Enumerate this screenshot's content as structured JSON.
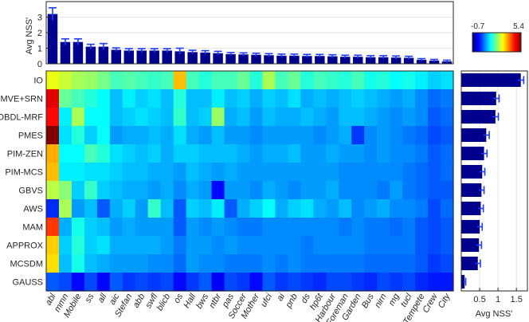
{
  "chart_data": [
    {
      "type": "bar",
      "name": "top-bar-chart",
      "ylabel": "Avg NSS'",
      "ylim": [
        0,
        4
      ],
      "yticks": [
        0,
        1,
        2,
        3
      ],
      "categories": [
        "abl",
        "mmn",
        "Mobile",
        "ss",
        "all",
        "aic",
        "Stefan",
        "abb",
        "swfl",
        "blicb",
        "os",
        "Hall",
        "bws",
        "ntbr",
        "pas",
        "Soccer",
        "Mother",
        "ufci",
        "ai",
        "pnb",
        "ds",
        "hp6t",
        "Harbour",
        "Foreman",
        "Garden",
        "Bus",
        "nirn",
        "mg",
        "tucl",
        "Tempete",
        "Crew",
        "City"
      ],
      "values": [
        3.2,
        1.4,
        1.4,
        1.1,
        1.1,
        0.9,
        0.85,
        0.85,
        0.85,
        0.85,
        0.8,
        0.75,
        0.72,
        0.68,
        0.62,
        0.6,
        0.58,
        0.55,
        0.52,
        0.52,
        0.5,
        0.5,
        0.48,
        0.45,
        0.45,
        0.42,
        0.42,
        0.4,
        0.38,
        0.25,
        0.2,
        0.15
      ],
      "errors": [
        0.4,
        0.2,
        0.2,
        0.15,
        0.2,
        0.12,
        0.12,
        0.12,
        0.12,
        0.12,
        0.2,
        0.12,
        0.12,
        0.12,
        0.1,
        0.1,
        0.1,
        0.1,
        0.1,
        0.1,
        0.1,
        0.1,
        0.1,
        0.1,
        0.1,
        0.1,
        0.1,
        0.1,
        0.1,
        0.08,
        0.08,
        0.08
      ]
    },
    {
      "type": "heatmap",
      "name": "nss-heatmap",
      "rows": [
        "IO",
        "MVE+SRN",
        "OBDL-MRF",
        "PMES",
        "PIM-ZEN",
        "PIM-MCS",
        "GBVS",
        "AWS",
        "MAM",
        "APPROX",
        "MCSDM",
        "GAUSS"
      ],
      "columns": [
        "abl",
        "mmn",
        "Mobile",
        "ss",
        "all",
        "aic",
        "Stefan",
        "abb",
        "swfl",
        "blicb",
        "os",
        "Hall",
        "bws",
        "ntbr",
        "pas",
        "Soccer",
        "Mother",
        "ufci",
        "ai",
        "pnb",
        "ds",
        "hp6t",
        "Harbour",
        "Foreman",
        "Garden",
        "Bus",
        "nirn",
        "mg",
        "tucl",
        "Tempete",
        "Crew",
        "City"
      ],
      "colorbar": {
        "min": -0.7,
        "max": 5.4,
        "min_label": "-0.7",
        "max_label": "5.4"
      },
      "values": [
        [
          3.0,
          2.8,
          2.6,
          2.5,
          2.3,
          2.0,
          2.1,
          2.0,
          1.9,
          2.0,
          3.5,
          2.0,
          1.8,
          2.0,
          2.0,
          2.2,
          1.8,
          2.6,
          2.0,
          2.2,
          1.8,
          2.0,
          1.9,
          1.8,
          2.0,
          1.7,
          1.8,
          1.6,
          1.7,
          1.5,
          1.3,
          1.4
        ],
        [
          4.8,
          2.2,
          2.0,
          1.8,
          1.6,
          1.2,
          1.5,
          1.3,
          1.4,
          1.2,
          1.8,
          1.2,
          1.2,
          1.5,
          1.2,
          1.3,
          1.1,
          1.3,
          1.2,
          1.4,
          1.1,
          1.2,
          1.1,
          1.2,
          1.3,
          1.2,
          1.1,
          1.0,
          1.1,
          0.9,
          0.7,
          0.8
        ],
        [
          4.6,
          1.5,
          2.6,
          1.6,
          1.6,
          1.2,
          1.3,
          1.4,
          1.3,
          1.2,
          1.9,
          1.2,
          1.3,
          2.5,
          1.1,
          1.2,
          1.0,
          1.2,
          1.1,
          1.1,
          1.2,
          1.1,
          1.0,
          1.2,
          1.2,
          1.1,
          1.0,
          0.9,
          1.0,
          0.9,
          0.6,
          0.7
        ],
        [
          5.4,
          1.4,
          1.8,
          1.3,
          1.6,
          1.0,
          1.1,
          1.1,
          1.2,
          1.1,
          1.4,
          1.1,
          1.0,
          1.2,
          1.0,
          1.0,
          0.9,
          1.0,
          1.0,
          1.0,
          1.0,
          0.9,
          1.0,
          1.1,
          0.4,
          0.9,
          1.0,
          0.9,
          0.8,
          0.7,
          0.5,
          0.6
        ],
        [
          3.6,
          1.6,
          1.6,
          2.0,
          1.8,
          1.4,
          1.3,
          1.2,
          1.3,
          1.1,
          1.3,
          1.3,
          1.2,
          1.2,
          1.2,
          1.1,
          1.0,
          1.1,
          1.1,
          1.2,
          1.0,
          1.0,
          1.1,
          1.0,
          1.0,
          0.9,
          1.0,
          0.9,
          0.9,
          0.8,
          0.6,
          0.7
        ],
        [
          3.5,
          1.5,
          1.5,
          1.4,
          1.4,
          1.3,
          1.2,
          1.2,
          1.1,
          1.1,
          1.0,
          1.2,
          1.1,
          1.0,
          1.1,
          1.0,
          1.0,
          1.0,
          1.0,
          1.0,
          1.0,
          1.0,
          1.0,
          0.9,
          0.9,
          0.9,
          0.9,
          0.9,
          0.8,
          0.7,
          0.6,
          0.7
        ],
        [
          2.7,
          2.4,
          1.3,
          1.9,
          1.3,
          1.2,
          1.1,
          1.1,
          1.0,
          1.1,
          0.9,
          1.1,
          1.0,
          0.1,
          1.0,
          1.0,
          0.9,
          1.1,
          1.0,
          0.9,
          1.0,
          1.0,
          1.1,
          0.9,
          0.9,
          0.9,
          0.8,
          1.0,
          0.8,
          0.7,
          0.6,
          0.6
        ],
        [
          0.3,
          2.6,
          1.0,
          1.2,
          0.6,
          1.1,
          1.3,
          1.0,
          1.9,
          1.2,
          0.6,
          1.3,
          1.2,
          1.5,
          0.6,
          1.1,
          1.3,
          1.6,
          1.1,
          1.3,
          1.4,
          1.1,
          1.0,
          1.2,
          0.9,
          1.0,
          1.1,
          0.9,
          0.9,
          0.8,
          0.5,
          0.7
        ],
        [
          4.3,
          1.1,
          1.7,
          1.3,
          1.2,
          1.0,
          1.1,
          1.0,
          1.0,
          1.0,
          0.6,
          1.0,
          0.9,
          1.0,
          0.9,
          0.8,
          0.8,
          0.9,
          0.9,
          0.9,
          0.9,
          0.9,
          0.9,
          0.8,
          0.9,
          0.8,
          0.8,
          0.7,
          0.8,
          0.6,
          0.5,
          0.6
        ],
        [
          3.4,
          1.3,
          1.8,
          1.3,
          1.4,
          1.1,
          1.1,
          1.1,
          1.1,
          1.0,
          0.8,
          1.0,
          1.0,
          0.9,
          1.0,
          0.9,
          0.9,
          0.9,
          0.9,
          0.9,
          0.8,
          0.9,
          0.9,
          0.9,
          0.9,
          0.8,
          0.8,
          0.8,
          0.8,
          0.6,
          0.5,
          0.6
        ],
        [
          3.3,
          1.2,
          1.7,
          1.2,
          1.1,
          1.0,
          1.0,
          1.0,
          0.9,
          0.9,
          0.7,
          1.0,
          0.9,
          0.9,
          0.8,
          0.8,
          0.8,
          0.9,
          0.8,
          0.9,
          0.8,
          0.8,
          0.8,
          0.8,
          0.8,
          0.7,
          0.7,
          0.7,
          0.7,
          0.6,
          0.4,
          0.5
        ],
        [
          0.6,
          0.5,
          0.1,
          0.5,
          0.1,
          0.6,
          0.4,
          0.5,
          0.4,
          0.5,
          0.1,
          0.4,
          0.6,
          0.0,
          0.5,
          0.4,
          0.1,
          0.6,
          0.4,
          0.5,
          0.4,
          0.3,
          0.5,
          0.5,
          0.4,
          0.3,
          0.5,
          0.4,
          0.5,
          0.3,
          0.2,
          0.2
        ]
      ]
    },
    {
      "type": "bar",
      "orientation": "horizontal",
      "name": "right-bar-chart",
      "xlabel": "Avg NSS'",
      "xlim": [
        0,
        1.8
      ],
      "xticks": [
        0.5,
        1,
        1.5
      ],
      "xtick_labels": [
        "0.5",
        "1",
        "1.5"
      ],
      "categories": [
        "IO",
        "MVE+SRN",
        "OBDL-MRF",
        "PMES",
        "PIM-ZEN",
        "PIM-MCS",
        "GBVS",
        "AWS",
        "MAM",
        "APPROX",
        "MCSDM",
        "GAUSS"
      ],
      "values": [
        1.62,
        0.95,
        0.93,
        0.68,
        0.62,
        0.57,
        0.55,
        0.53,
        0.5,
        0.48,
        0.45,
        0.09
      ],
      "errors": [
        0.08,
        0.08,
        0.08,
        0.08,
        0.08,
        0.07,
        0.07,
        0.07,
        0.07,
        0.07,
        0.07,
        0.03
      ]
    }
  ]
}
